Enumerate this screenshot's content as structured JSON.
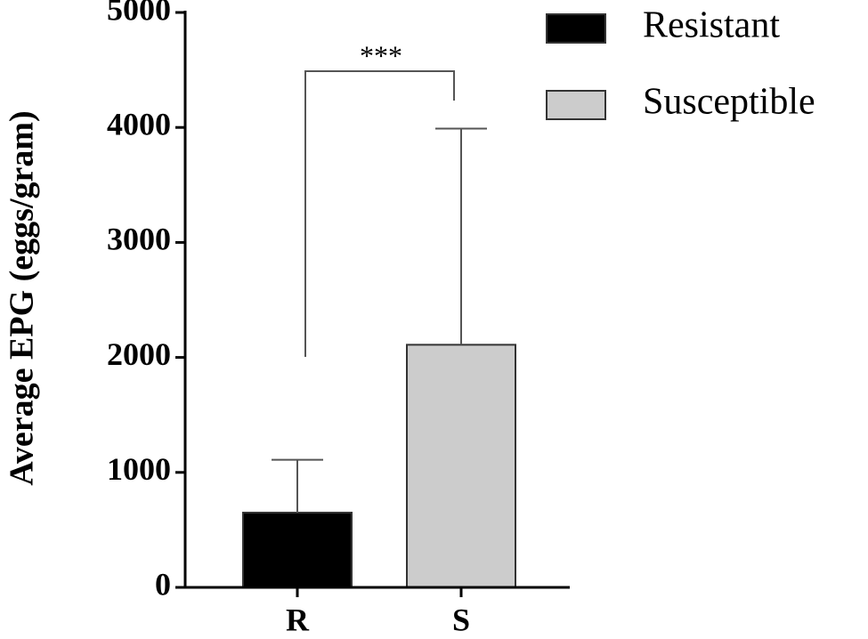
{
  "chart_data": {
    "type": "bar",
    "ylabel": "Average EPG (eggs/gram)",
    "categories": [
      "R",
      "S"
    ],
    "series": [
      {
        "name": "Resistant",
        "color": "#000000",
        "values": [
          650,
          null
        ],
        "errors": [
          460,
          null
        ]
      },
      {
        "name": "Susceptible",
        "color": "#cccccc",
        "values": [
          null,
          2110
        ],
        "errors": [
          null,
          1880
        ]
      }
    ],
    "ylim": [
      0,
      5000
    ],
    "yticks": [
      0,
      1000,
      2000,
      3000,
      4000,
      5000
    ],
    "annotations": [
      {
        "text": "***"
      }
    ],
    "legend": "top-right"
  }
}
